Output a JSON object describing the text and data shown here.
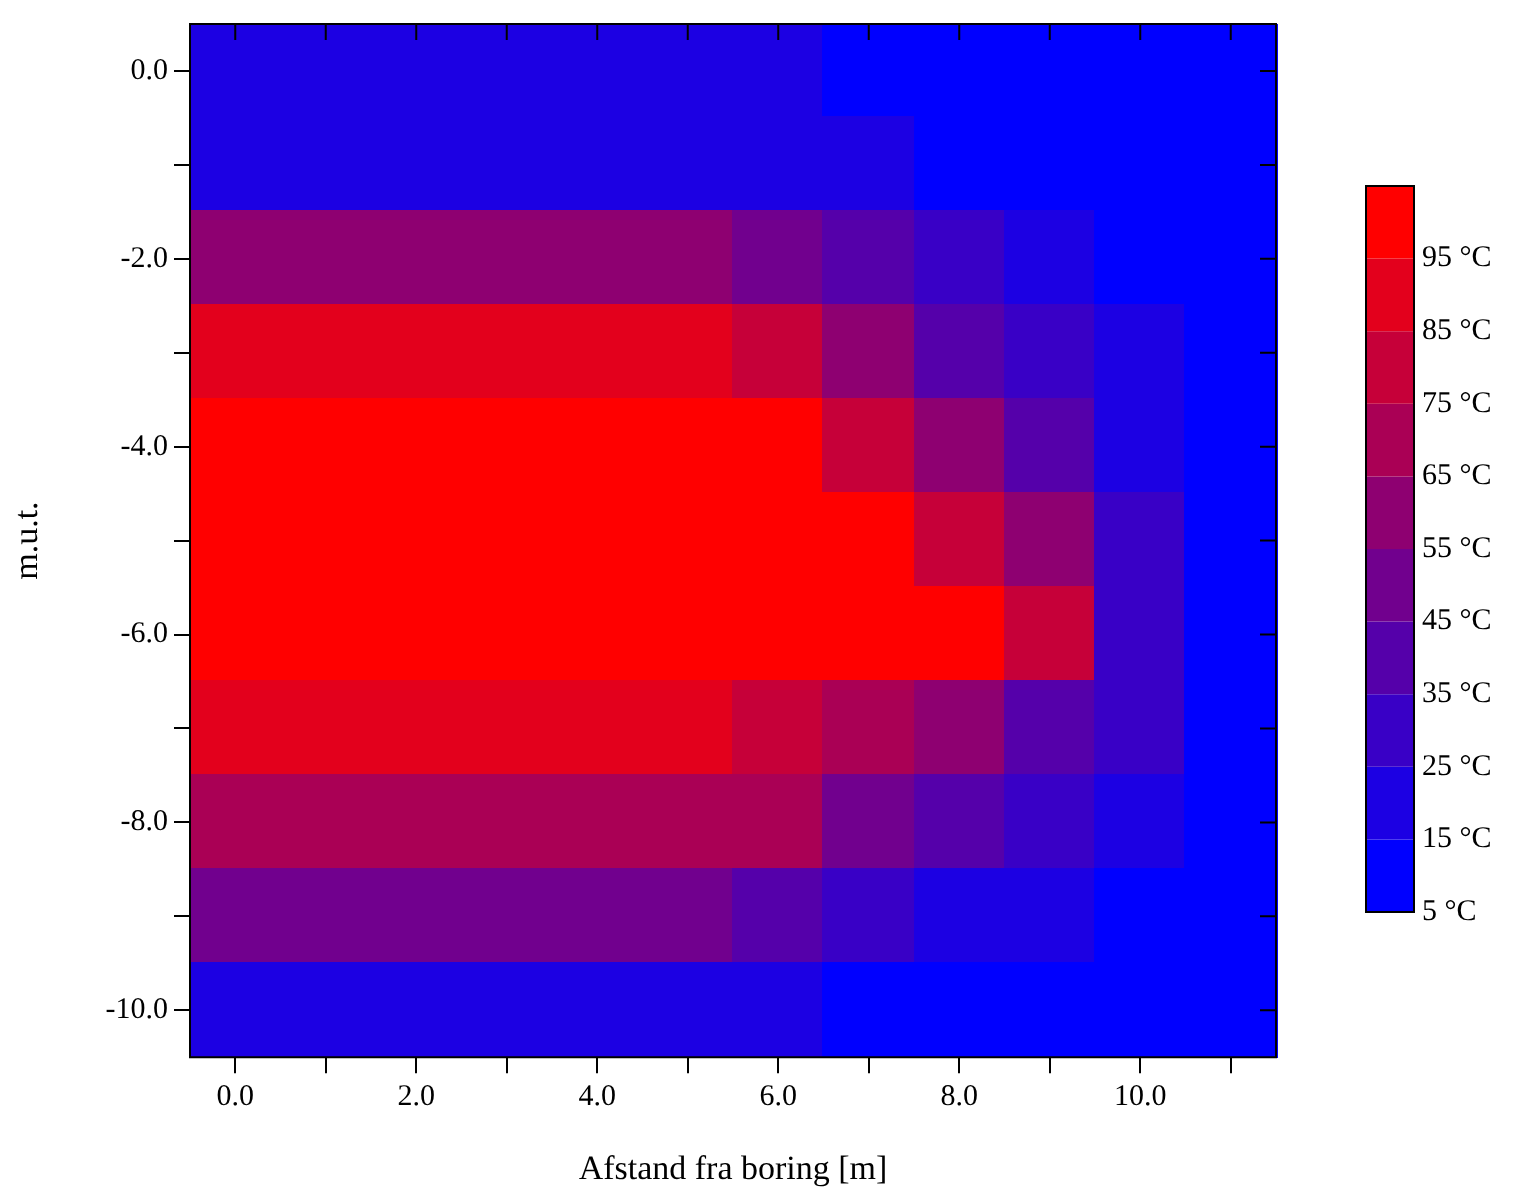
{
  "chart_data": {
    "type": "heatmap",
    "xlabel": "Afstand fra boring [m]",
    "ylabel": "m.u.t.",
    "categories": [
      "0.0",
      null,
      "2.0",
      null,
      "4.0",
      null,
      "6.0",
      null,
      "8.0",
      null,
      "10.0",
      null
    ],
    "y_categories": [
      "0.0",
      null,
      "-2.0",
      null,
      "-4.0",
      null,
      "-6.0",
      null,
      "-8.0",
      null,
      "-10.0"
    ],
    "cells": [
      [
        20,
        20,
        20,
        20,
        20,
        20,
        20,
        10,
        10,
        10,
        10,
        10
      ],
      [
        20,
        20,
        20,
        20,
        20,
        20,
        20,
        20,
        10,
        10,
        10,
        10
      ],
      [
        60,
        60,
        60,
        60,
        60,
        60,
        50,
        40,
        30,
        20,
        10,
        10
      ],
      [
        90,
        90,
        90,
        90,
        90,
        90,
        80,
        60,
        40,
        30,
        20,
        10
      ],
      [
        100,
        100,
        100,
        100,
        100,
        100,
        100,
        80,
        60,
        40,
        20,
        10
      ],
      [
        100,
        100,
        100,
        100,
        100,
        100,
        100,
        100,
        80,
        60,
        30,
        10
      ],
      [
        100,
        100,
        100,
        100,
        100,
        100,
        100,
        100,
        100,
        80,
        30,
        10
      ],
      [
        90,
        90,
        90,
        90,
        90,
        90,
        80,
        70,
        60,
        40,
        30,
        10
      ],
      [
        70,
        70,
        70,
        70,
        70,
        70,
        70,
        50,
        40,
        30,
        20,
        10
      ],
      [
        50,
        50,
        50,
        50,
        50,
        50,
        40,
        30,
        20,
        20,
        10,
        10
      ],
      [
        20,
        20,
        20,
        20,
        20,
        20,
        20,
        10,
        10,
        10,
        10,
        10
      ]
    ],
    "clim": [
      5,
      105
    ],
    "cticks": [
      {
        "value": 5,
        "label": "5 °C"
      },
      {
        "value": 15,
        "label": "15 °C"
      },
      {
        "value": 25,
        "label": "25 °C"
      },
      {
        "value": 35,
        "label": "35 °C"
      },
      {
        "value": 45,
        "label": "45 °C"
      },
      {
        "value": 55,
        "label": "55 °C"
      },
      {
        "value": 65,
        "label": "65 °C"
      },
      {
        "value": 75,
        "label": "75 °C"
      },
      {
        "value": 85,
        "label": "85 °C"
      },
      {
        "value": 95,
        "label": "95 °C"
      }
    ],
    "colors": [
      "#0000ff",
      "#1c00e3",
      "#3900c6",
      "#5500aa",
      "#71008e",
      "#8e0071",
      "#aa0055",
      "#c60039",
      "#e3001c",
      "#ff0000"
    ]
  }
}
